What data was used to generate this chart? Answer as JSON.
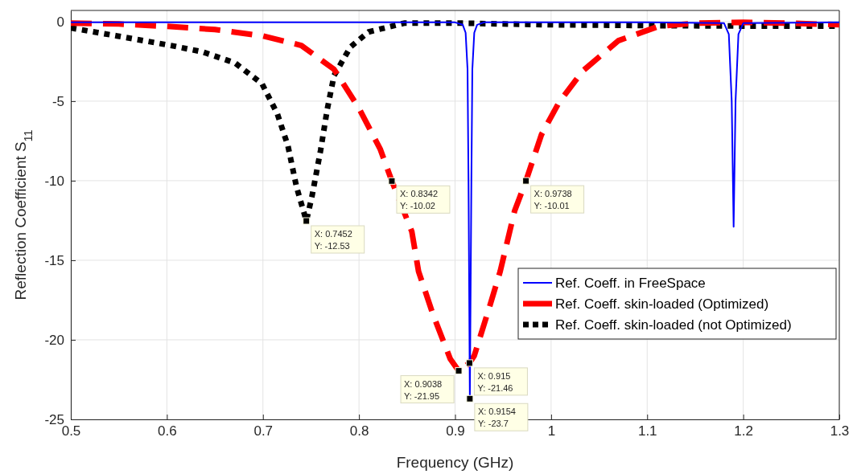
{
  "chart_data": {
    "type": "line",
    "xlabel": "Frequency (GHz)",
    "ylabel": "Reflection Coefficient S$_{11}$",
    "xlim": [
      0.5,
      1.3
    ],
    "xticks": [
      0.5,
      0.6,
      0.7,
      0.8,
      0.9,
      1,
      1.1,
      1.2,
      1.3
    ],
    "ylim": [
      -25,
      0.7
    ],
    "yticks": [
      -25,
      -20,
      -15,
      -10,
      -5,
      0
    ],
    "grid": true,
    "legend": "bottom right",
    "series": [
      {
        "name": "Ref. Coeff. in FreeSpace",
        "color": "#0000ff",
        "line_style": "solid",
        "x": [
          0.5,
          0.7,
          0.9,
          0.908,
          0.911,
          0.913,
          0.914,
          0.9154,
          0.917,
          0.918,
          0.92,
          0.923,
          0.93,
          1.1,
          1.18,
          1.185,
          1.188,
          1.19,
          1.192,
          1.195,
          1.2,
          1.3
        ],
        "values": [
          -0.05,
          -0.05,
          -0.05,
          -0.2,
          -0.7,
          -3,
          -10,
          -23.7,
          -10,
          -3,
          -0.7,
          -0.2,
          -0.05,
          -0.05,
          -0.1,
          -0.8,
          -5,
          -12.9,
          -5,
          -0.8,
          -0.1,
          -0.05
        ]
      },
      {
        "name": "Ref. Coeff. skin-loaded (Optimized)",
        "color": "#ff0000",
        "line_style": "dashed",
        "x": [
          0.5,
          0.55,
          0.6,
          0.65,
          0.7,
          0.74,
          0.774,
          0.8,
          0.822,
          0.8342,
          0.855,
          0.862,
          0.877,
          0.895,
          0.9038,
          0.915,
          0.92,
          0.935,
          0.947,
          0.962,
          0.9738,
          0.99,
          1.008,
          1.033,
          1.07,
          1.112,
          1.15,
          1.2,
          1.25,
          1.3
        ],
        "values": [
          -0.1,
          -0.15,
          -0.3,
          -0.5,
          -0.9,
          -1.5,
          -3,
          -5.45,
          -8,
          -10.02,
          -13.2,
          -15.7,
          -18.4,
          -21.2,
          -21.95,
          -21.46,
          -21,
          -18.1,
          -15.7,
          -11.9,
          -10.01,
          -7.1,
          -5.1,
          -3.1,
          -1.2,
          -0.3,
          -0.1,
          -0.05,
          -0.1,
          -0.2
        ]
      },
      {
        "name": "Ref. Coeff. skin-loaded (not Optimized)",
        "color": "#000000",
        "line_style": "dotted",
        "x": [
          0.5,
          0.548,
          0.604,
          0.637,
          0.671,
          0.699,
          0.715,
          0.726,
          0.735,
          0.7452,
          0.751,
          0.76,
          0.767,
          0.774,
          0.791,
          0.81,
          0.847,
          0.9,
          0.95,
          1,
          1.1,
          1.2,
          1.3
        ],
        "values": [
          -0.4,
          -0.9,
          -1.5,
          -1.9,
          -2.6,
          -3.9,
          -5.8,
          -7.8,
          -10.4,
          -12.53,
          -11,
          -8.1,
          -5.5,
          -3.4,
          -1.6,
          -0.65,
          -0.1,
          -0.09,
          -0.15,
          -0.2,
          -0.25,
          -0.28,
          -0.28
        ]
      }
    ],
    "annotations": [
      {
        "text": "X: 0.7452\nY: -12.53",
        "x": 0.7452,
        "y": -12.53
      },
      {
        "text": "X: 0.8342\nY: -10.02",
        "x": 0.8342,
        "y": -10.02
      },
      {
        "text": "X: 0.9738\nY: -10.01",
        "x": 0.9738,
        "y": -10.01
      },
      {
        "text": "X: 0.9038\nY: -21.95",
        "x": 0.9038,
        "y": -21.95
      },
      {
        "text": "X: 0.915\nY: -21.46",
        "x": 0.915,
        "y": -21.46
      },
      {
        "text": "X: 0.9154\nY: -23.7",
        "x": 0.9154,
        "y": -23.7
      }
    ]
  }
}
